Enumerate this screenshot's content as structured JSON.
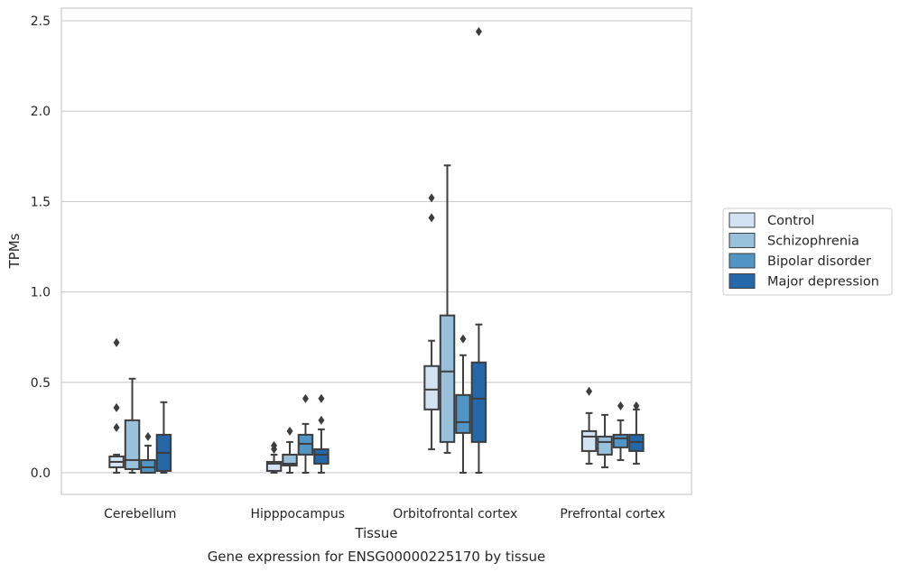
{
  "chart_data": {
    "type": "boxplot",
    "caption": "Gene expression for ENSG00000225170 by tissue",
    "xlabel": "Tissue",
    "ylabel": "TPMs",
    "ylim": [
      -0.12,
      2.57
    ],
    "yticks": [
      0.0,
      0.5,
      1.0,
      1.5,
      2.0,
      2.5
    ],
    "ytick_labels": [
      "0.0",
      "0.5",
      "1.0",
      "1.5",
      "2.0",
      "2.5"
    ],
    "grid": "y",
    "legend_position": "right-outside",
    "categories": [
      "Cerebellum",
      "Hipppocampus",
      "Orbitofrontal cortex",
      "Prefrontal cortex"
    ],
    "series": [
      {
        "name": "Control",
        "color": "#d4e3f3",
        "boxes": [
          {
            "whislo": 0.0,
            "q1": 0.03,
            "med": 0.06,
            "q3": 0.09,
            "whishi": 0.1,
            "fliers": [
              0.25,
              0.36,
              0.72
            ]
          },
          {
            "whislo": 0.0,
            "q1": 0.01,
            "med": 0.05,
            "q3": 0.06,
            "whishi": 0.1,
            "fliers": [
              0.13,
              0.15
            ]
          },
          {
            "whislo": 0.13,
            "q1": 0.35,
            "med": 0.46,
            "q3": 0.59,
            "whishi": 0.73,
            "fliers": [
              1.41,
              1.52
            ]
          },
          {
            "whislo": 0.05,
            "q1": 0.12,
            "med": 0.2,
            "q3": 0.23,
            "whishi": 0.33,
            "fliers": [
              0.45
            ]
          }
        ]
      },
      {
        "name": "Schizophrenia",
        "color": "#9ac1dc",
        "boxes": [
          {
            "whislo": 0.0,
            "q1": 0.02,
            "med": 0.07,
            "q3": 0.29,
            "whishi": 0.52,
            "fliers": []
          },
          {
            "whislo": 0.0,
            "q1": 0.04,
            "med": 0.05,
            "q3": 0.1,
            "whishi": 0.17,
            "fliers": [
              0.23
            ]
          },
          {
            "whislo": 0.11,
            "q1": 0.17,
            "med": 0.56,
            "q3": 0.87,
            "whishi": 1.7,
            "fliers": []
          },
          {
            "whislo": 0.03,
            "q1": 0.1,
            "med": 0.17,
            "q3": 0.2,
            "whishi": 0.32,
            "fliers": []
          }
        ]
      },
      {
        "name": "Bipolar disorder",
        "color": "#5095c4",
        "boxes": [
          {
            "whislo": 0.0,
            "q1": 0.0,
            "med": 0.03,
            "q3": 0.07,
            "whishi": 0.15,
            "fliers": [
              0.2
            ]
          },
          {
            "whislo": 0.0,
            "q1": 0.1,
            "med": 0.16,
            "q3": 0.21,
            "whishi": 0.27,
            "fliers": [
              0.41
            ]
          },
          {
            "whislo": 0.0,
            "q1": 0.22,
            "med": 0.28,
            "q3": 0.43,
            "whishi": 0.65,
            "fliers": [
              0.74
            ]
          },
          {
            "whislo": 0.07,
            "q1": 0.14,
            "med": 0.19,
            "q3": 0.21,
            "whishi": 0.29,
            "fliers": [
              0.37
            ]
          }
        ]
      },
      {
        "name": "Major depression",
        "color": "#2468a9",
        "boxes": [
          {
            "whislo": 0.0,
            "q1": 0.01,
            "med": 0.11,
            "q3": 0.21,
            "whishi": 0.39,
            "fliers": []
          },
          {
            "whislo": 0.0,
            "q1": 0.05,
            "med": 0.1,
            "q3": 0.13,
            "whishi": 0.24,
            "fliers": [
              0.29,
              0.41
            ]
          },
          {
            "whislo": 0.0,
            "q1": 0.17,
            "med": 0.41,
            "q3": 0.61,
            "whishi": 0.82,
            "fliers": [
              2.44
            ]
          },
          {
            "whislo": 0.05,
            "q1": 0.12,
            "med": 0.17,
            "q3": 0.21,
            "whishi": 0.35,
            "fliers": [
              0.37
            ]
          }
        ]
      }
    ]
  }
}
